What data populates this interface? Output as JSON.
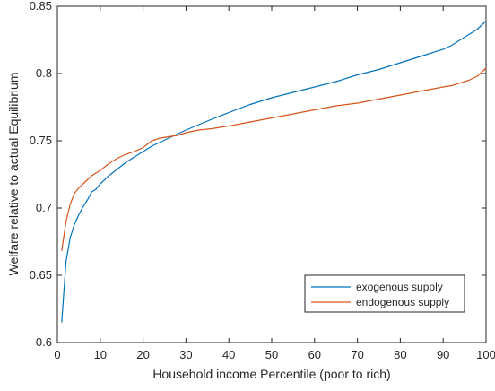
{
  "chart_data": {
    "type": "line",
    "title": "",
    "xlabel": "Household income Percentile (poor to rich)",
    "ylabel": "Welfare relative to actual Equilibrium",
    "xlim": [
      0,
      100
    ],
    "ylim": [
      0.6,
      0.85
    ],
    "xticks": [
      0,
      10,
      20,
      30,
      40,
      50,
      60,
      70,
      80,
      90,
      100
    ],
    "yticks": [
      0.6,
      0.65,
      0.7,
      0.75,
      0.8,
      0.85
    ],
    "xtick_labels": [
      "0",
      "10",
      "20",
      "30",
      "40",
      "50",
      "60",
      "70",
      "80",
      "90",
      "100"
    ],
    "ytick_labels": [
      "0.6",
      "0.65",
      "0.7",
      "0.75",
      "0.8",
      "0.85"
    ],
    "grid": false,
    "legend_position": "bottom-right",
    "series": [
      {
        "name": "exogenous supply",
        "color": "#0072BD",
        "x": [
          1,
          2,
          3,
          4,
          5,
          6,
          7,
          8,
          9,
          10,
          12,
          14,
          16,
          18,
          20,
          22,
          24,
          26,
          28,
          30,
          33,
          36,
          40,
          45,
          50,
          55,
          60,
          65,
          70,
          75,
          80,
          85,
          90,
          92,
          94,
          96,
          98,
          100
        ],
        "y": [
          0.615,
          0.66,
          0.678,
          0.688,
          0.695,
          0.701,
          0.706,
          0.712,
          0.714,
          0.718,
          0.724,
          0.729,
          0.734,
          0.738,
          0.742,
          0.746,
          0.749,
          0.752,
          0.755,
          0.758,
          0.762,
          0.766,
          0.771,
          0.777,
          0.782,
          0.786,
          0.79,
          0.794,
          0.799,
          0.803,
          0.808,
          0.813,
          0.818,
          0.821,
          0.825,
          0.829,
          0.833,
          0.839
        ]
      },
      {
        "name": "endogenous supply",
        "color": "#D95319",
        "x": [
          1,
          2,
          3,
          4,
          5,
          6,
          7,
          8,
          9,
          10,
          12,
          14,
          16,
          18,
          20,
          22,
          24,
          26,
          28,
          30,
          33,
          36,
          40,
          45,
          50,
          55,
          60,
          65,
          70,
          75,
          80,
          85,
          90,
          92,
          94,
          96,
          98,
          100
        ],
        "y": [
          0.668,
          0.69,
          0.703,
          0.711,
          0.715,
          0.718,
          0.721,
          0.724,
          0.726,
          0.728,
          0.733,
          0.737,
          0.74,
          0.742,
          0.745,
          0.75,
          0.752,
          0.753,
          0.754,
          0.756,
          0.758,
          0.759,
          0.761,
          0.764,
          0.767,
          0.77,
          0.773,
          0.776,
          0.778,
          0.781,
          0.784,
          0.787,
          0.79,
          0.791,
          0.793,
          0.795,
          0.798,
          0.804
        ]
      }
    ]
  }
}
